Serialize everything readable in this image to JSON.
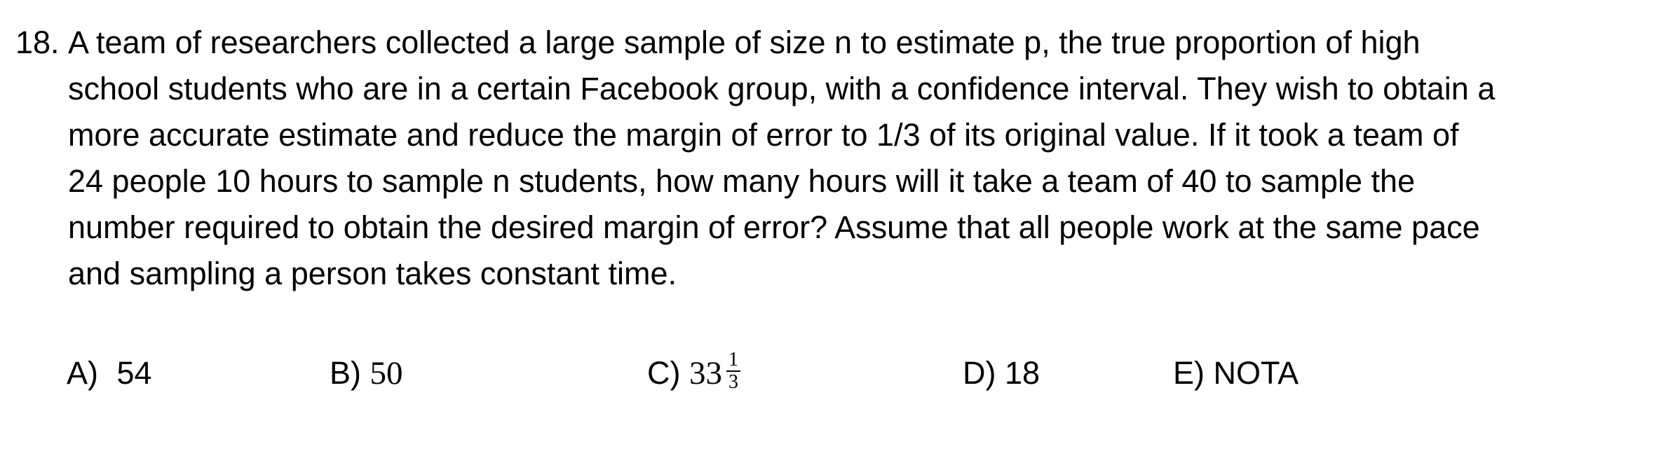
{
  "question": {
    "number": "18.",
    "lines": [
      "A team of researchers collected a large sample of size n to estimate p, the true proportion of high",
      "school students who are in a certain Facebook group, with a confidence interval. They wish to obtain a",
      "more accurate estimate and reduce the margin of error to 1/3 of its original value. If it took a team of",
      "24 people 10 hours to sample n students, how many hours will it take a team of 40 to sample the",
      "number required to obtain the desired margin of error? Assume that all people work at the same pace",
      "and sampling a person takes constant time."
    ]
  },
  "choices": {
    "a": {
      "letter": "A)",
      "value": "54"
    },
    "b": {
      "letter": "B)",
      "value": "50"
    },
    "c": {
      "letter": "C)",
      "whole": "33",
      "numerator": "1",
      "denominator": "3"
    },
    "d": {
      "letter": "D)",
      "value": "18"
    },
    "e": {
      "letter": "E)",
      "value": "NOTA"
    }
  }
}
